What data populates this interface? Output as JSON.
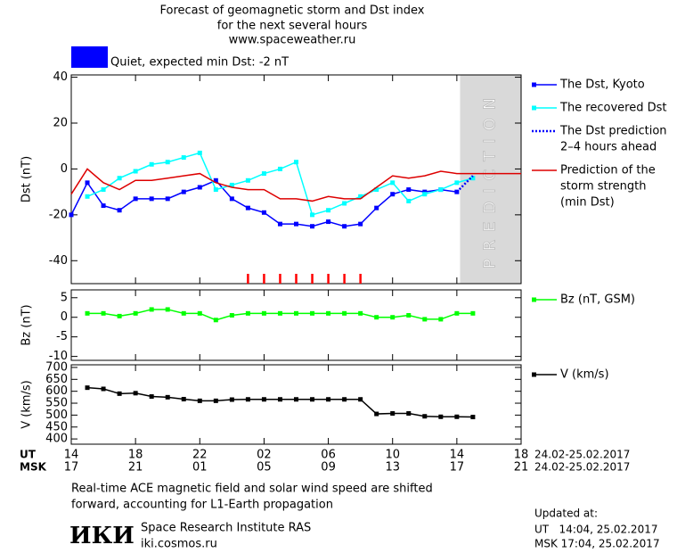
{
  "header": {
    "title": [
      "Forecast of geomagnetic storm and Dst index",
      "for the next several hours",
      "www.spaceweather.ru"
    ]
  },
  "status": {
    "color": "#0000ff",
    "text": "Quiet, expected min Dst: -2 nT"
  },
  "chart_data": [
    {
      "type": "line",
      "ylabel": "Dst (nT)",
      "xlim": [
        0,
        28
      ],
      "ylim": [
        -50,
        41
      ],
      "yticks": [
        -40,
        -20,
        0,
        20,
        40
      ],
      "shade": {
        "x": [
          24.2,
          28
        ],
        "label": "PREDICTION",
        "color": "#d9d9d9"
      },
      "storm_marks": {
        "color": "#ff0000",
        "x": [
          11,
          12,
          13,
          14,
          15,
          16,
          17,
          18
        ]
      },
      "series": [
        {
          "name": "The Dst, Kyoto",
          "color": "#0000ff",
          "marker": "square",
          "x": [
            0,
            1,
            2,
            3,
            4,
            5,
            6,
            7,
            8,
            9,
            10,
            11,
            12,
            13,
            14,
            15,
            16,
            17,
            18,
            19,
            20,
            21,
            22,
            23,
            24
          ],
          "values": [
            -20,
            -6,
            -16,
            -18,
            -13,
            -13,
            -13,
            -10,
            -8,
            -5,
            -13,
            -17,
            -19,
            -24,
            -24,
            -25,
            -23,
            -25,
            -24,
            -17,
            -11,
            -9,
            -10,
            -9,
            -10
          ]
        },
        {
          "name": "The recovered Dst",
          "color": "#00ffff",
          "marker": "square",
          "x": [
            1,
            2,
            3,
            4,
            5,
            6,
            7,
            8,
            9,
            10,
            11,
            12,
            13,
            14,
            15,
            16,
            17,
            18,
            19,
            20,
            21,
            22,
            23,
            24,
            25
          ],
          "values": [
            -12,
            -9,
            -4,
            -1,
            2,
            3,
            5,
            7,
            -9,
            -7,
            -5,
            -2,
            0,
            3,
            -20,
            -18,
            -15,
            -12,
            -9,
            -6,
            -14,
            -11,
            -9,
            -6,
            -4
          ]
        },
        {
          "name": [
            "The Dst prediction",
            "2–4 hours ahead"
          ],
          "color": "#0000ff",
          "dash": true,
          "x": [
            24,
            25
          ],
          "values": [
            -10,
            -3
          ]
        },
        {
          "name": [
            "Prediction of the",
            "storm strength",
            "(min Dst)"
          ],
          "color": "#dd0000",
          "x": [
            0,
            1,
            2,
            3,
            4,
            5,
            6,
            7,
            8,
            9,
            10,
            11,
            12,
            13,
            14,
            15,
            16,
            17,
            18,
            19,
            20,
            21,
            22,
            23,
            24,
            25,
            26,
            27,
            28
          ],
          "values": [
            -11,
            0,
            -6,
            -9,
            -5,
            -5,
            -4,
            -3,
            -2,
            -6,
            -8,
            -9,
            -9,
            -13,
            -13,
            -14,
            -12,
            -13,
            -13,
            -8,
            -3,
            -4,
            -3,
            -1,
            -2,
            -2,
            -2,
            -2,
            -2
          ]
        }
      ]
    },
    {
      "type": "line",
      "ylabel": "Bz (nT)",
      "xlim": [
        0,
        28
      ],
      "ylim": [
        -11,
        7
      ],
      "yticks": [
        5,
        0,
        -5,
        -10
      ],
      "series": [
        {
          "name": "Bz (nT, GSM)",
          "color": "#00ff00",
          "marker": "square",
          "x": [
            1,
            2,
            3,
            4,
            5,
            6,
            7,
            8,
            9,
            10,
            11,
            12,
            13,
            14,
            15,
            16,
            17,
            18,
            19,
            20,
            21,
            22,
            23,
            24,
            25
          ],
          "values": [
            1,
            1,
            0.3,
            1,
            2,
            2,
            1,
            1,
            -0.7,
            0.5,
            1,
            1,
            1,
            1,
            1,
            1,
            1,
            1,
            0,
            0,
            0.5,
            -0.5,
            -0.5,
            1,
            1
          ]
        }
      ]
    },
    {
      "type": "line",
      "ylabel": "V (km/s)",
      "xlim": [
        0,
        28
      ],
      "ylim": [
        378,
        711
      ],
      "yticks": [
        400,
        450,
        500,
        550,
        600,
        650,
        700
      ],
      "xticks": [
        {
          "value": 0,
          "label": "14"
        },
        {
          "value": 4,
          "label": "18"
        },
        {
          "value": 8,
          "label": "22"
        },
        {
          "value": 12,
          "label": "02"
        },
        {
          "value": 16,
          "label": "06"
        },
        {
          "value": 20,
          "label": "10"
        },
        {
          "value": 24,
          "label": "14"
        },
        {
          "value": 28,
          "label": "18"
        }
      ],
      "x2ticks": [
        {
          "value": 0,
          "label": "17"
        },
        {
          "value": 4,
          "label": "21"
        },
        {
          "value": 8,
          "label": "01"
        },
        {
          "value": 12,
          "label": "05"
        },
        {
          "value": 16,
          "label": "09"
        },
        {
          "value": 20,
          "label": "13"
        },
        {
          "value": 24,
          "label": "17"
        },
        {
          "value": 28,
          "label": "21"
        }
      ],
      "series": [
        {
          "name": "V (km/s)",
          "color": "#000000",
          "marker": "square",
          "x": [
            1,
            2,
            3,
            4,
            5,
            6,
            7,
            8,
            9,
            10,
            11,
            12,
            13,
            14,
            15,
            16,
            17,
            18,
            19,
            20,
            21,
            22,
            23,
            24,
            25
          ],
          "values": [
            615,
            610,
            590,
            592,
            578,
            575,
            567,
            560,
            560,
            565,
            566,
            566,
            566,
            566,
            566,
            566,
            566,
            566,
            505,
            507,
            507,
            495,
            493,
            493,
            492
          ]
        }
      ]
    }
  ],
  "time_axis": {
    "ut_label": "UT",
    "msk_label": "MSK",
    "ut_range": "24.02-25.02.2017",
    "msk_range": "24.02-25.02.2017"
  },
  "footer": {
    "note": [
      "Real-time ACE magnetic field and solar wind speed are shifted",
      "forward, accounting for L1-Earth propagation"
    ],
    "logo": "ИКИ",
    "institute": "Space Research Institute RAS",
    "site": "iki.cosmos.ru",
    "updated": "Updated at:",
    "updated_ut": "UT   14:04, 25.02.2017",
    "updated_msk": "MSK 17:04, 25.02.2017"
  }
}
